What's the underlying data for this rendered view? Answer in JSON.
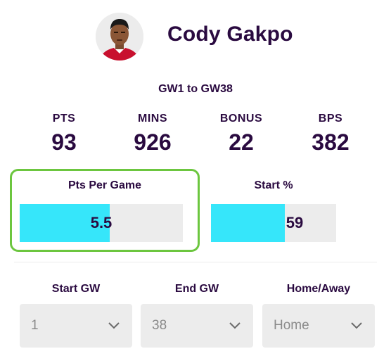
{
  "player": {
    "name": "Cody Gakpo"
  },
  "range_label": "GW1 to GW38",
  "stats": [
    {
      "label": "PTS",
      "value": "93"
    },
    {
      "label": "MINS",
      "value": "926"
    },
    {
      "label": "BONUS",
      "value": "22"
    },
    {
      "label": "BPS",
      "value": "382"
    }
  ],
  "metrics": {
    "pts_per_game": {
      "title": "Pts Per Game",
      "value": "5.5",
      "fill_fraction": 0.55
    },
    "start_pct": {
      "title": "Start %",
      "value": "59",
      "fill_fraction": 0.59
    }
  },
  "filters": {
    "start_gw": {
      "label": "Start GW",
      "value": "1"
    },
    "end_gw": {
      "label": "End GW",
      "value": "38"
    },
    "home_away": {
      "label": "Home/Away",
      "value": "Home"
    }
  },
  "colors": {
    "text": "#2a0a40",
    "bar_fill": "#36e6fa",
    "bar_track": "#ececec",
    "highlight_border": "#6cc63f",
    "select_text": "#8a8a8a"
  },
  "icons": {
    "avatar": "player-avatar",
    "dropdown": "chevron-down-icon"
  }
}
